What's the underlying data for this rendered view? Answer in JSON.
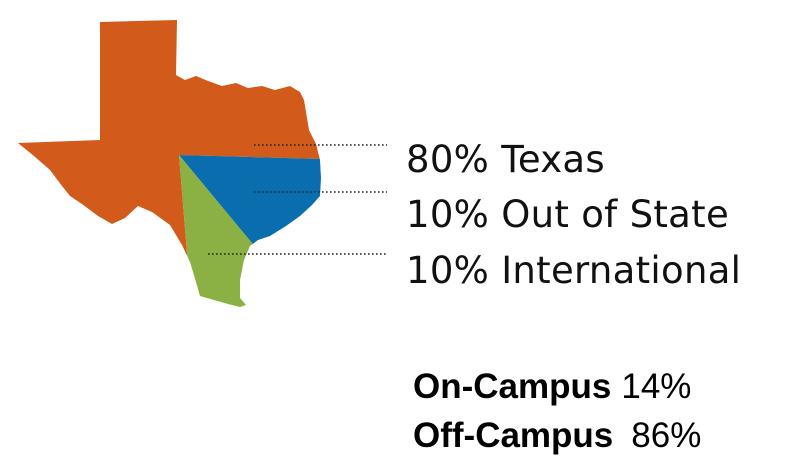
{
  "chart_data": {
    "type": "pie",
    "title": "",
    "slices": [
      {
        "label": "80% Texas",
        "value": 80,
        "color": "#D25A1B"
      },
      {
        "label": "10% Out of State",
        "value": 10,
        "color": "#0A6EAE"
      },
      {
        "label": "10% International",
        "value": 10,
        "color": "#8BB043"
      }
    ],
    "shape": "state-of-texas-map"
  },
  "housing": [
    {
      "label": "On-Campus",
      "value": "14%"
    },
    {
      "label": "Off-Campus",
      "value": "86%"
    }
  ]
}
